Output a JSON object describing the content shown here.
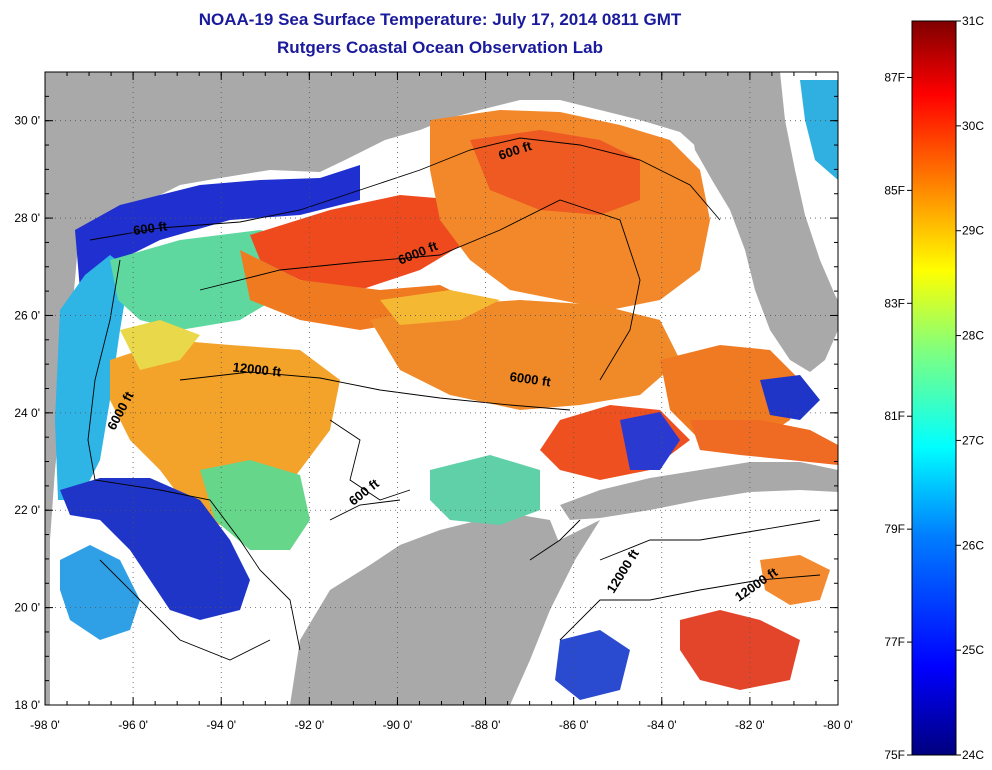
{
  "title": {
    "line1": "NOAA-19 Sea Surface Temperature:  July 17, 2014 0811 GMT",
    "line2": "Rutgers Coastal Ocean Observation Lab"
  },
  "axes": {
    "lon_ticks": [
      {
        "value": -98,
        "label": "-98 0'"
      },
      {
        "value": -96,
        "label": "-96 0'"
      },
      {
        "value": -94,
        "label": "-94 0'"
      },
      {
        "value": -92,
        "label": "-92 0'"
      },
      {
        "value": -90,
        "label": "-90 0'"
      },
      {
        "value": -88,
        "label": "-88 0'"
      },
      {
        "value": -86,
        "label": "-86 0'"
      },
      {
        "value": -84,
        "label": "-84 0'"
      },
      {
        "value": -82,
        "label": "-82 0'"
      },
      {
        "value": -80,
        "label": "-80 0'"
      }
    ],
    "lat_ticks": [
      {
        "value": 18,
        "label": "18 0'"
      },
      {
        "value": 20,
        "label": "20 0'"
      },
      {
        "value": 22,
        "label": "22 0'"
      },
      {
        "value": 24,
        "label": "24 0'"
      },
      {
        "value": 26,
        "label": "26 0'"
      },
      {
        "value": 28,
        "label": "28 0'"
      },
      {
        "value": 30,
        "label": "30 0'"
      }
    ],
    "lon_range": [
      -98,
      -80
    ],
    "lat_range": [
      18,
      31
    ]
  },
  "contour_labels": [
    {
      "text": "600 ft",
      "lon": -95.6,
      "lat": 27.7,
      "angle": -8
    },
    {
      "text": "600 ft",
      "lon": -87.3,
      "lat": 29.3,
      "angle": -18
    },
    {
      "text": "6000 ft",
      "lon": -89.5,
      "lat": 27.2,
      "angle": -22
    },
    {
      "text": "12000 ft",
      "lon": -93.2,
      "lat": 24.8,
      "angle": 6
    },
    {
      "text": "6000 ft",
      "lon": -87.0,
      "lat": 24.6,
      "angle": 8
    },
    {
      "text": "6000 ft",
      "lon": -96.2,
      "lat": 24.0,
      "angle": -62
    },
    {
      "text": "600 ft",
      "lon": -90.7,
      "lat": 22.3,
      "angle": -38
    },
    {
      "text": "12000 ft",
      "lon": -84.8,
      "lat": 20.7,
      "angle": -58
    },
    {
      "text": "12000 ft",
      "lon": -81.8,
      "lat": 20.4,
      "angle": -35
    }
  ],
  "colorbar": {
    "celsius_range": [
      24,
      31
    ],
    "fahrenheit_range": [
      75,
      88
    ],
    "celsius_labels": [
      "31C",
      "30C",
      "29C",
      "28C",
      "27C",
      "26C",
      "25C",
      "24C"
    ],
    "fahrenheit_labels": [
      "87F",
      "85F",
      "83F",
      "81F",
      "79F",
      "77F",
      "75F"
    ],
    "fahrenheit_values": [
      87,
      85,
      83,
      81,
      79,
      77,
      75
    ],
    "colors": [
      "#00007f",
      "#0000ff",
      "#007fff",
      "#00ffff",
      "#7fff7f",
      "#ffff00",
      "#ff7f00",
      "#ff0000",
      "#7f0000"
    ]
  },
  "map_colors": {
    "land": "#a9a9a9",
    "no_data": "#ffffff",
    "contour": "#000000"
  }
}
